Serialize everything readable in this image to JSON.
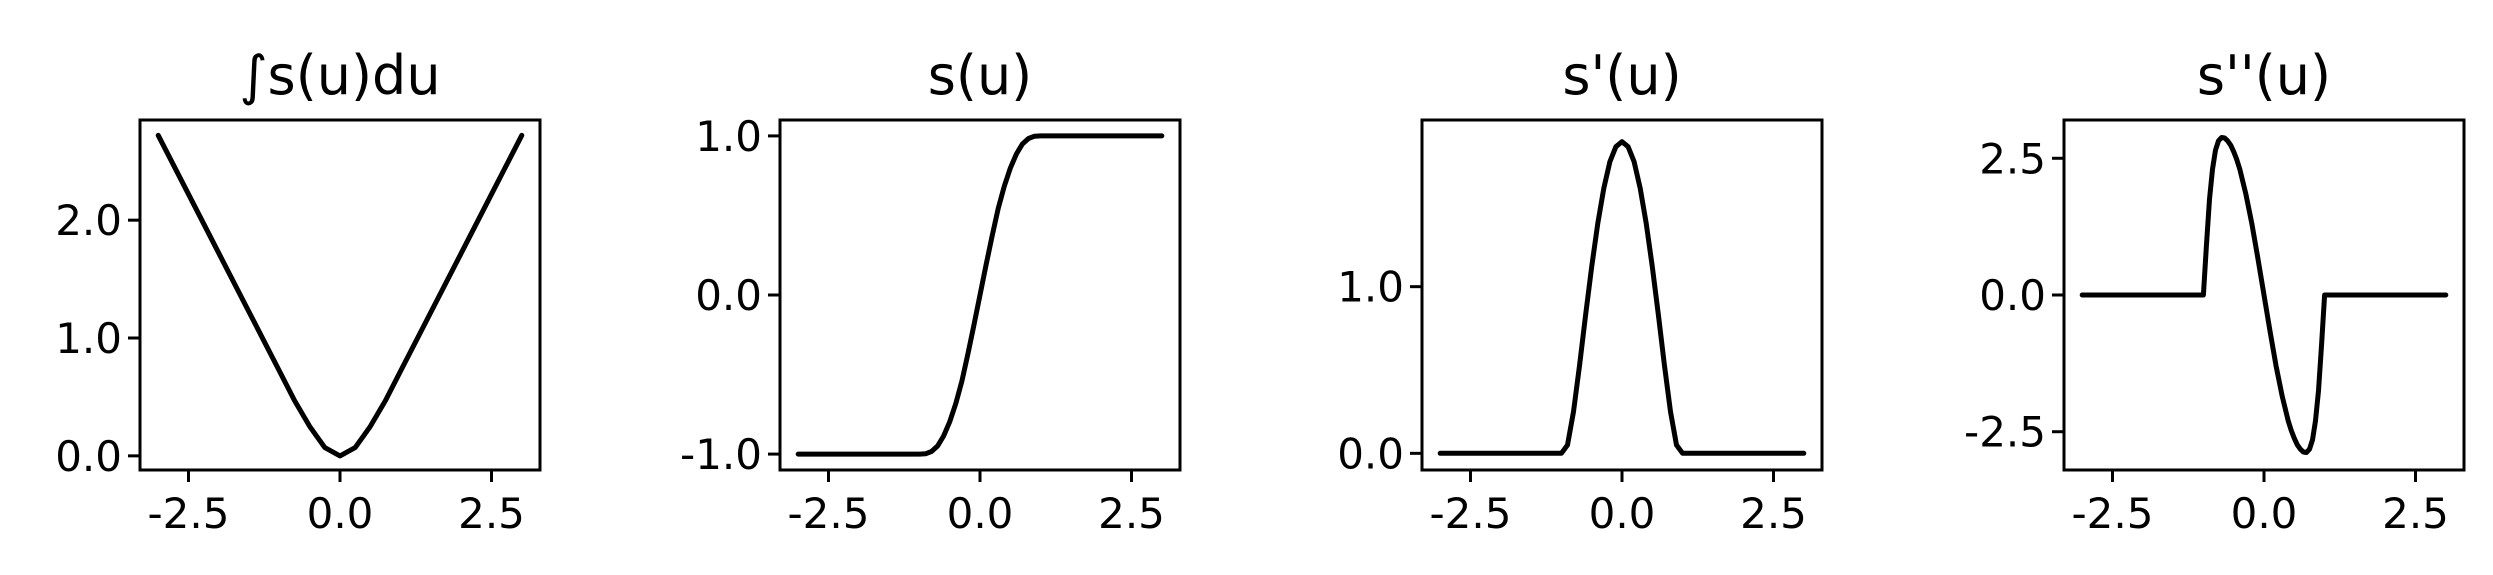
{
  "figure": {
    "background": "#ffffff",
    "line_color": "#000000"
  },
  "chart_data": [
    {
      "type": "line",
      "title": "∫s(u)du",
      "xlabel": "",
      "ylabel": "",
      "xlim": [
        -3.3,
        3.3
      ],
      "ylim": [
        -0.12,
        2.85
      ],
      "xticks": [
        -2.5,
        0.0,
        2.5
      ],
      "xtick_labels": [
        "-2.5",
        "0.0",
        "2.5"
      ],
      "yticks": [
        0.0,
        1.0,
        2.0
      ],
      "ytick_labels": [
        "0.0",
        "1.0",
        "2.0"
      ],
      "grid": false,
      "series": [
        {
          "x": [
            -3.0,
            -2.5,
            -2.0,
            -1.5,
            -1.0,
            -0.75,
            -0.5,
            -0.25,
            0.0,
            0.25,
            0.5,
            0.75,
            1.0,
            1.5,
            2.0,
            2.5,
            3.0
          ],
          "values": [
            2.72,
            2.22,
            1.72,
            1.22,
            0.72,
            0.47,
            0.25,
            0.07,
            0.0,
            0.07,
            0.25,
            0.47,
            0.72,
            1.22,
            1.72,
            2.22,
            2.72
          ]
        }
      ]
    },
    {
      "type": "line",
      "title": "s(u)",
      "xlabel": "",
      "ylabel": "",
      "xlim": [
        -3.3,
        3.3
      ],
      "ylim": [
        -1.1,
        1.1
      ],
      "xticks": [
        -2.5,
        0.0,
        2.5
      ],
      "xtick_labels": [
        "-2.5",
        "0.0",
        "2.5"
      ],
      "yticks": [
        -1.0,
        0.0,
        1.0
      ],
      "ytick_labels": [
        "-1.0",
        "0.0",
        "1.0"
      ],
      "grid": false,
      "series": [
        {
          "x": [
            -3.0,
            -1.0,
            -0.9,
            -0.8,
            -0.7,
            -0.6,
            -0.5,
            -0.4,
            -0.3,
            -0.2,
            -0.1,
            0.0,
            0.1,
            0.2,
            0.3,
            0.4,
            0.5,
            0.6,
            0.7,
            0.8,
            0.9,
            1.0,
            3.0
          ],
          "values": [
            -1.0,
            -1.0,
            -0.998,
            -0.984,
            -0.949,
            -0.886,
            -0.797,
            -0.682,
            -0.544,
            -0.37,
            -0.19,
            0.0,
            0.19,
            0.37,
            0.544,
            0.682,
            0.797,
            0.886,
            0.949,
            0.984,
            0.998,
            1.0,
            1.0
          ]
        }
      ]
    },
    {
      "type": "line",
      "title": "s'(u)",
      "xlabel": "",
      "ylabel": "",
      "xlim": [
        -3.3,
        3.3
      ],
      "ylim": [
        -0.1,
        2.0
      ],
      "xticks": [
        -2.5,
        0.0,
        2.5
      ],
      "xtick_labels": [
        "-2.5",
        "0.0",
        "2.5"
      ],
      "yticks": [
        0.0,
        1.0
      ],
      "ytick_labels": [
        "0.0",
        "1.0"
      ],
      "grid": false,
      "series": [
        {
          "x": [
            -3.0,
            -1.0,
            -0.9,
            -0.8,
            -0.7,
            -0.6,
            -0.5,
            -0.4,
            -0.3,
            -0.2,
            -0.1,
            0.0,
            0.1,
            0.2,
            0.3,
            0.4,
            0.5,
            0.6,
            0.7,
            0.8,
            0.9,
            1.0,
            3.0
          ],
          "values": [
            0.0,
            0.0,
            0.05,
            0.25,
            0.53,
            0.83,
            1.12,
            1.38,
            1.59,
            1.75,
            1.84,
            1.87,
            1.84,
            1.75,
            1.59,
            1.38,
            1.12,
            0.83,
            0.53,
            0.25,
            0.05,
            0.0,
            0.0
          ]
        }
      ]
    },
    {
      "type": "line",
      "title": "s''(u)",
      "xlabel": "",
      "ylabel": "",
      "xlim": [
        -3.3,
        3.3
      ],
      "ylim": [
        -3.2,
        3.2
      ],
      "xticks": [
        -2.5,
        0.0,
        2.5
      ],
      "xtick_labels": [
        "-2.5",
        "0.0",
        "2.5"
      ],
      "yticks": [
        -2.5,
        0.0,
        2.5
      ],
      "ytick_labels": [
        "-2.5",
        "0.0",
        "2.5"
      ],
      "grid": false,
      "series": [
        {
          "x": [
            -3.0,
            -1.0,
            -0.95,
            -0.9,
            -0.85,
            -0.8,
            -0.75,
            -0.7,
            -0.65,
            -0.6,
            -0.55,
            -0.5,
            -0.45,
            -0.4,
            -0.3,
            -0.2,
            -0.1,
            0.0,
            0.1,
            0.2,
            0.3,
            0.4,
            0.45,
            0.5,
            0.55,
            0.6,
            0.65,
            0.7,
            0.75,
            0.8,
            0.85,
            0.9,
            0.95,
            1.0,
            3.0
          ],
          "values": [
            0.0,
            0.0,
            0.9,
            1.75,
            2.3,
            2.65,
            2.82,
            2.88,
            2.87,
            2.82,
            2.74,
            2.62,
            2.48,
            2.3,
            1.85,
            1.3,
            0.67,
            0.0,
            -0.67,
            -1.3,
            -1.85,
            -2.3,
            -2.48,
            -2.62,
            -2.74,
            -2.82,
            -2.87,
            -2.88,
            -2.82,
            -2.65,
            -2.3,
            -1.75,
            -0.9,
            0.0,
            0.0
          ]
        }
      ]
    }
  ]
}
